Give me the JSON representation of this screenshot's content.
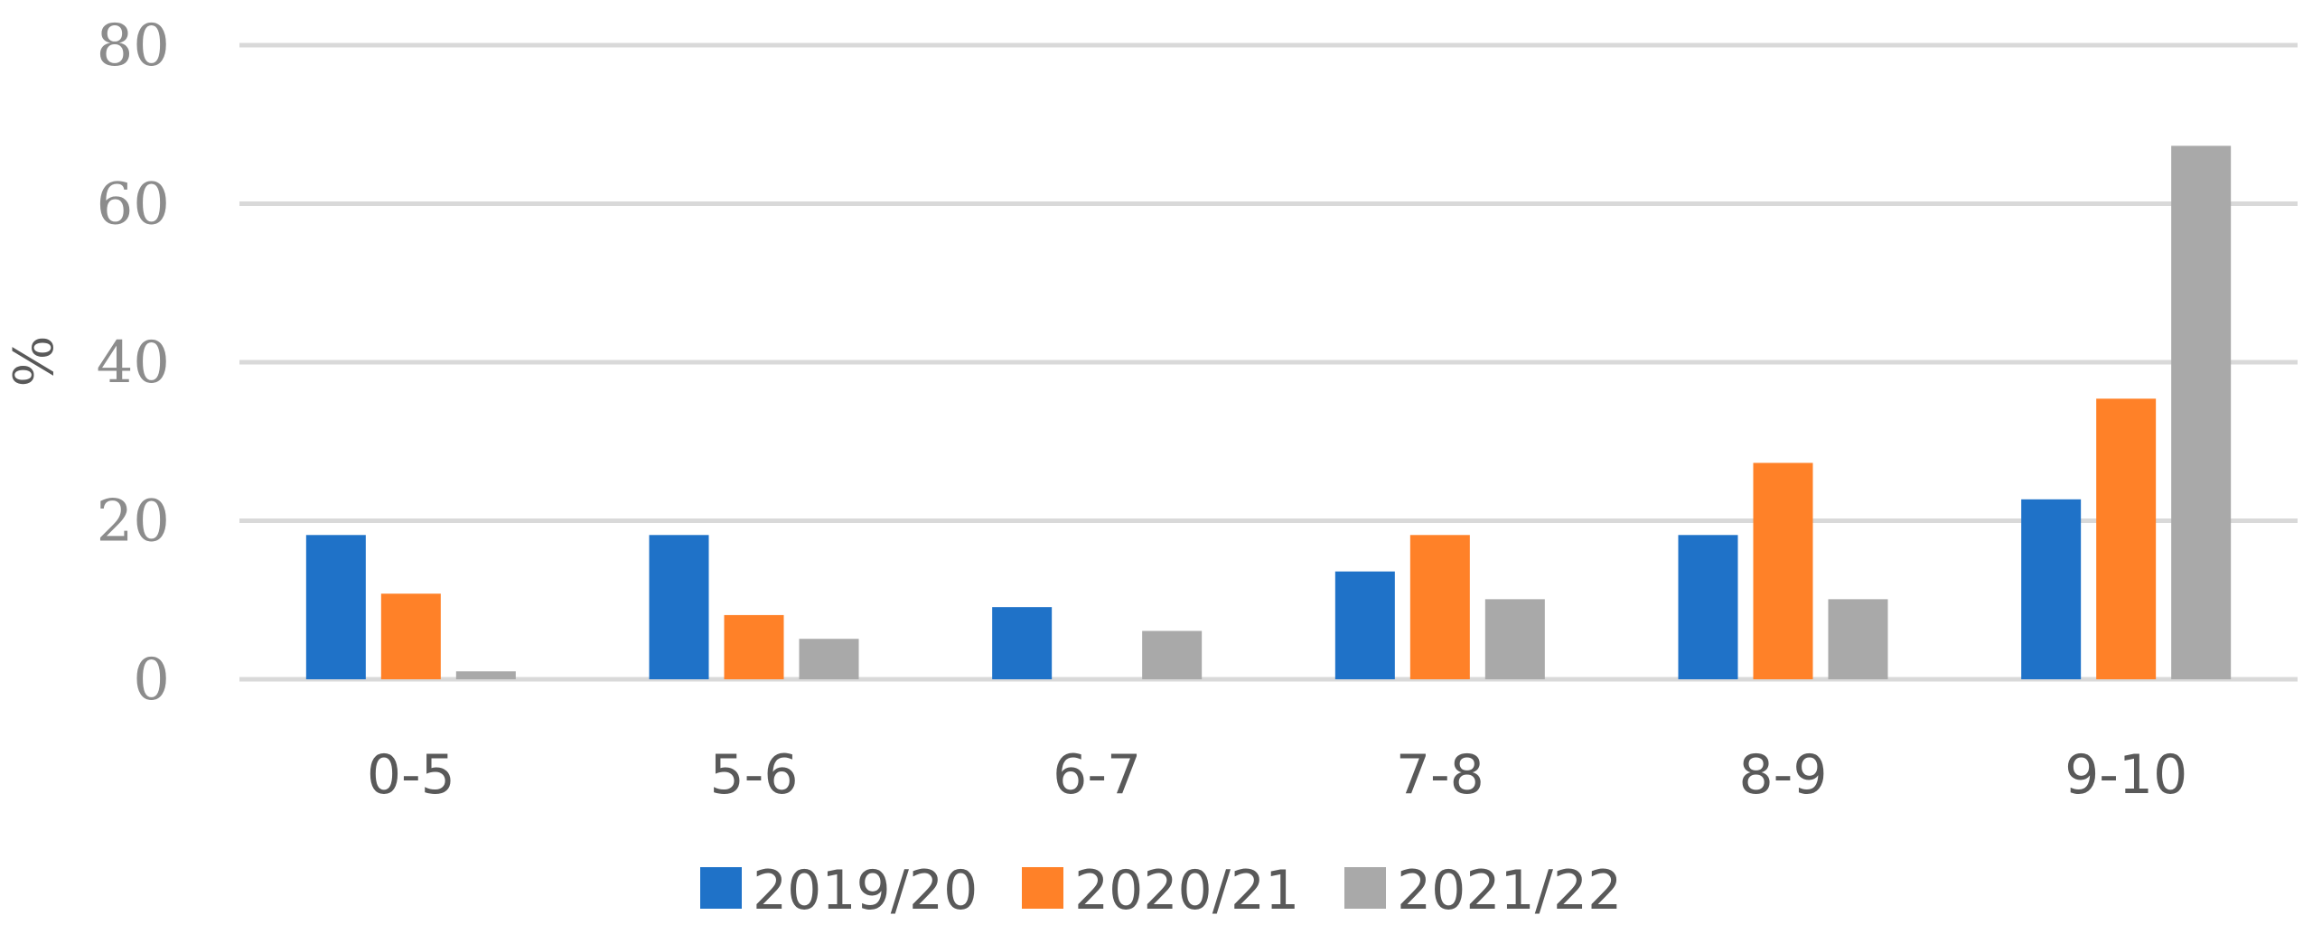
{
  "chart_data": {
    "type": "bar",
    "categories": [
      "0-5",
      "5-6",
      "6-7",
      "7-8",
      "8-9",
      "9-10"
    ],
    "series": [
      {
        "name": "2019/20",
        "color": "#1f72c8",
        "values": [
          18.2,
          18.2,
          9.1,
          13.6,
          18.2,
          22.7
        ]
      },
      {
        "name": "2020/21",
        "color": "#ff8128",
        "values": [
          10.8,
          8.1,
          0,
          18.2,
          27.3,
          35.4
        ]
      },
      {
        "name": "2021/22",
        "color": "#a9a9a9",
        "values": [
          1.0,
          5.1,
          6.1,
          10.1,
          10.1,
          67.3
        ]
      }
    ],
    "ylabel": "%",
    "xlabel": "",
    "title": "",
    "ylim": [
      0,
      80
    ],
    "yticks": [
      0,
      20,
      40,
      60,
      80
    ],
    "grid": true,
    "legend_position": "bottom",
    "gridline_color": "#d9d9d9"
  }
}
